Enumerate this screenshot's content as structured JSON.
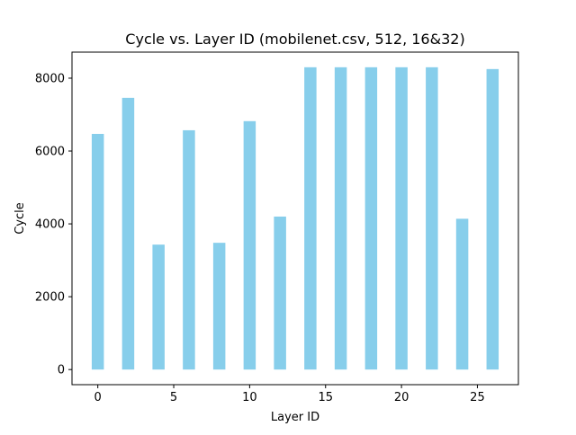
{
  "chart_data": {
    "type": "bar",
    "title": "Cycle vs. Layer ID (mobilenet.csv, 512, 16&32)",
    "xlabel": "Layer ID",
    "ylabel": "Cycle",
    "x": [
      0,
      2,
      4,
      6,
      8,
      10,
      12,
      14,
      16,
      18,
      20,
      22,
      24,
      26
    ],
    "values": [
      6470,
      7460,
      3430,
      6570,
      3480,
      6820,
      4200,
      8300,
      8300,
      8300,
      8300,
      8300,
      4140,
      8250
    ],
    "bar_width": 0.8,
    "xlim": [
      -1.7,
      27.7
    ],
    "ylim": [
      -415,
      8715
    ],
    "xticks": [
      0,
      5,
      10,
      15,
      20,
      25
    ],
    "yticks": [
      0,
      2000,
      4000,
      6000,
      8000
    ],
    "grid": false,
    "legend": "none",
    "colors": {
      "bar": "#87ceeb",
      "axis": "#000000",
      "background": "#ffffff"
    }
  }
}
